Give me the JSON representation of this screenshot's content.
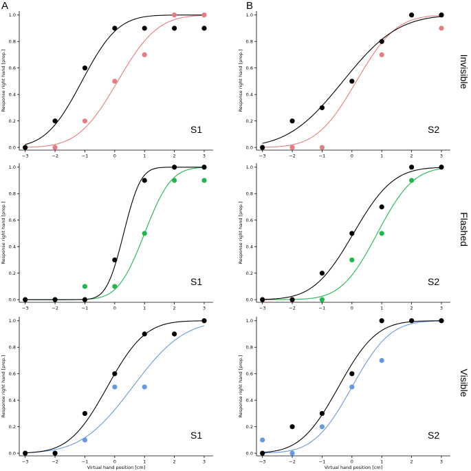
{
  "figure": {
    "column_labels": [
      "A",
      "B"
    ],
    "row_labels": [
      "Invisible",
      "Flashed",
      "Visible"
    ]
  },
  "colors": {
    "baseline": "#000000",
    "Invisible": "#e77c7c",
    "Flashed": "#1fb84c",
    "Visible": "#6699e0"
  },
  "chart_data": [
    {
      "type": "scatter",
      "panel_label": "S1",
      "column": "A",
      "row": "Invisible",
      "xlabel": "Virtual hand position [cm]",
      "ylabel": "Response right hand [prop.]",
      "xlim": [
        -3.2,
        3.3
      ],
      "ylim": [
        -0.02,
        1.03
      ],
      "xticks": [
        -3,
        -2,
        -1,
        0,
        1,
        2,
        3
      ],
      "yticks": [
        0.0,
        0.2,
        0.4,
        0.6,
        0.8,
        1.0
      ],
      "series": [
        {
          "name": "baseline",
          "color": "#000000",
          "x": [
            -3,
            -2,
            -1,
            0,
            1,
            2,
            3
          ],
          "y": [
            0.0,
            0.2,
            0.6,
            0.9,
            0.9,
            0.9,
            0.9
          ],
          "fit": {
            "mu": -1.1,
            "sigma": 0.95
          }
        },
        {
          "name": "Invisible",
          "color": "#e77c7c",
          "x": [
            -2,
            -1,
            0,
            1,
            2,
            3
          ],
          "y": [
            0.0,
            0.2,
            0.5,
            0.7,
            1.0,
            1.0
          ],
          "fit": {
            "mu": 0.1,
            "sigma": 1.05
          }
        }
      ]
    },
    {
      "type": "scatter",
      "panel_label": "S2",
      "column": "B",
      "row": "Invisible",
      "xlabel": "Virtual hand position [cm]",
      "ylabel": "Response right hand [prop.]",
      "xlim": [
        -3.2,
        3.3
      ],
      "ylim": [
        -0.02,
        1.03
      ],
      "xticks": [
        -3,
        -2,
        -1,
        0,
        1,
        2,
        3
      ],
      "yticks": [
        0.0,
        0.2,
        0.4,
        0.6,
        0.8,
        1.0
      ],
      "series": [
        {
          "name": "baseline",
          "color": "#000000",
          "x": [
            -3,
            -2,
            -1,
            0,
            1,
            2,
            3
          ],
          "y": [
            0.0,
            0.2,
            0.3,
            0.5,
            0.8,
            1.0,
            1.0
          ],
          "fit": {
            "mu": -0.3,
            "sigma": 1.45
          }
        },
        {
          "name": "Invisible",
          "color": "#e77c7c",
          "x": [
            -2,
            -1,
            1,
            3
          ],
          "y": [
            0.0,
            0.0,
            0.7,
            0.9
          ],
          "fit": {
            "mu": 0.15,
            "sigma": 1.05
          }
        }
      ]
    },
    {
      "type": "scatter",
      "panel_label": "S1",
      "column": "A",
      "row": "Flashed",
      "xlabel": "Virtual hand position [cm]",
      "ylabel": "Response right hand [prop.]",
      "xlim": [
        -3.2,
        3.3
      ],
      "ylim": [
        -0.02,
        1.03
      ],
      "xticks": [
        -3,
        -2,
        -1,
        0,
        1,
        2,
        3
      ],
      "yticks": [
        0.0,
        0.2,
        0.4,
        0.6,
        0.8,
        1.0
      ],
      "series": [
        {
          "name": "baseline",
          "color": "#000000",
          "x": [
            -3,
            -2,
            -1,
            0,
            1,
            2,
            3
          ],
          "y": [
            0.0,
            0.0,
            0.0,
            0.3,
            0.9,
            1.0,
            1.0
          ],
          "fit": {
            "mu": 0.3,
            "sigma": 0.45
          }
        },
        {
          "name": "Flashed",
          "color": "#1fb84c",
          "x": [
            -1,
            0,
            1,
            2,
            3
          ],
          "y": [
            0.1,
            0.1,
            0.5,
            0.9,
            0.9
          ],
          "fit": {
            "mu": 1.0,
            "sigma": 0.7
          }
        }
      ]
    },
    {
      "type": "scatter",
      "panel_label": "S2",
      "column": "B",
      "row": "Flashed",
      "xlabel": "Virtual hand position [cm]",
      "ylabel": "Response right hand [prop.]",
      "xlim": [
        -3.2,
        3.3
      ],
      "ylim": [
        -0.02,
        1.03
      ],
      "xticks": [
        -3,
        -2,
        -1,
        0,
        1,
        2,
        3
      ],
      "yticks": [
        0.0,
        0.2,
        0.4,
        0.6,
        0.8,
        1.0
      ],
      "series": [
        {
          "name": "baseline",
          "color": "#000000",
          "x": [
            -3,
            -2,
            -1,
            0,
            1,
            2,
            3
          ],
          "y": [
            0.0,
            0.0,
            0.2,
            0.5,
            0.7,
            1.0,
            1.0
          ],
          "fit": {
            "mu": 0.05,
            "sigma": 1.05
          }
        },
        {
          "name": "Flashed",
          "color": "#1fb84c",
          "x": [
            -1,
            0,
            1,
            2
          ],
          "y": [
            0.0,
            0.3,
            0.5,
            0.9
          ],
          "fit": {
            "mu": 0.85,
            "sigma": 0.95
          }
        }
      ]
    },
    {
      "type": "scatter",
      "panel_label": "S1",
      "column": "A",
      "row": "Visible",
      "xlabel": "Virtual hand position [cm]",
      "ylabel": "Response right hand [prop.]",
      "xlim": [
        -3.2,
        3.3
      ],
      "ylim": [
        -0.02,
        1.03
      ],
      "xticks": [
        -3,
        -2,
        -1,
        0,
        1,
        2,
        3
      ],
      "yticks": [
        0.0,
        0.2,
        0.4,
        0.6,
        0.8,
        1.0
      ],
      "series": [
        {
          "name": "baseline",
          "color": "#000000",
          "x": [
            -3,
            -2,
            -1,
            0,
            1,
            2,
            3
          ],
          "y": [
            0.0,
            0.0,
            0.3,
            0.6,
            0.9,
            0.9,
            1.0
          ],
          "fit": {
            "mu": -0.25,
            "sigma": 1.0
          }
        },
        {
          "name": "Visible",
          "color": "#6699e0",
          "x": [
            -1,
            0,
            1
          ],
          "y": [
            0.1,
            0.5,
            0.5
          ],
          "fit": {
            "mu": 0.6,
            "sigma": 1.35
          }
        }
      ]
    },
    {
      "type": "scatter",
      "panel_label": "S2",
      "column": "B",
      "row": "Visible",
      "xlabel": "Virtual hand position [cm]",
      "ylabel": "Response right hand [prop.]",
      "xlim": [
        -3.2,
        3.3
      ],
      "ylim": [
        -0.02,
        1.03
      ],
      "xticks": [
        -3,
        -2,
        -1,
        0,
        1,
        2,
        3
      ],
      "yticks": [
        0.0,
        0.2,
        0.4,
        0.6,
        0.8,
        1.0
      ],
      "series": [
        {
          "name": "baseline",
          "color": "#000000",
          "x": [
            -3,
            -2,
            -1,
            0,
            1,
            2,
            3
          ],
          "y": [
            0.0,
            0.2,
            0.3,
            0.6,
            1.0,
            1.0,
            1.0
          ],
          "fit": {
            "mu": -0.45,
            "sigma": 1.0
          }
        },
        {
          "name": "Visible",
          "color": "#6699e0",
          "x": [
            -3,
            -2,
            -1,
            0,
            1
          ],
          "y": [
            0.1,
            0.0,
            0.2,
            0.5,
            0.7
          ],
          "fit": {
            "mu": 0.0,
            "sigma": 1.0
          }
        }
      ]
    }
  ]
}
